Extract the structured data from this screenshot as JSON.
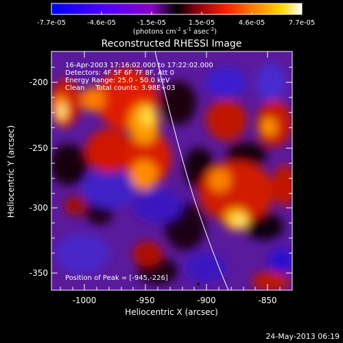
{
  "colorbar": {
    "tick_labels": [
      "-7.7e-05",
      "-4.6e-05",
      "-1.5e-05",
      "1.5e-05",
      "4.6e-05",
      "7.7e-05"
    ],
    "unit_main": "(photons cm",
    "unit_exp1": "-2",
    "unit_s": " s",
    "unit_exp2": "-1",
    "unit_asec": " asec",
    "unit_exp3": "-2",
    "unit_close": ")"
  },
  "plot": {
    "title": "Reconstructed RHESSI Image",
    "xlabel": "Heliocentric X (arcsec)",
    "ylabel": "Heliocentric Y (arcsec)",
    "x_ticks": [
      "-1000",
      "-950",
      "-900",
      "-850"
    ],
    "y_ticks": [
      "-200",
      "-250",
      "-300",
      "-350"
    ],
    "info_lines": [
      "16-Apr-2003 17:16:02.000 to 17:22:02.000",
      "Detectors: 4F 5F 6F 7F 8F, Att 0",
      "Energy Range: 25.0 - 50.0 keV",
      "Clean     Total counts: 3.98E+03"
    ],
    "peak_text": "Position of Peak = [-945,-226]"
  },
  "footer": {
    "date": "24-May-2013 06:19"
  },
  "chart_data": {
    "type": "heatmap",
    "title": "Reconstructed RHESSI Image",
    "xlabel": "Heliocentric X (arcsec)",
    "ylabel": "Heliocentric Y (arcsec)",
    "xlim": [
      -1022,
      -833
    ],
    "ylim": [
      -370,
      -180
    ],
    "value_range": [
      -7.7e-05,
      7.7e-05
    ],
    "peak_position": [
      -945,
      -226
    ]
  }
}
